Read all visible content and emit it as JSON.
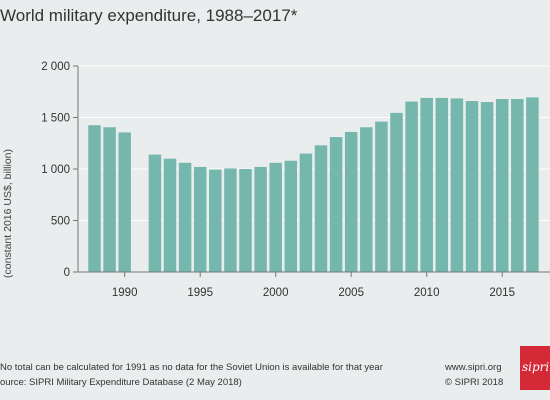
{
  "title": "World military expenditure, 1988–2017*",
  "footnote": "No total can be calculated for 1991 as no data for the Soviet Union is available for that year",
  "source": "ource: SIPRI Military Expenditure Database (2 May 2018)",
  "website": "www.sipri.org",
  "copyright": "© SIPRI 2018",
  "logo_text": "sipri",
  "colors": {
    "bar": "#76b7ad",
    "axis": "#777777",
    "background": "#e9eded"
  },
  "chart_data": {
    "type": "bar",
    "title": "World military expenditure, 1988–2017*",
    "ylabel": "(constant 2016 US$, billion)",
    "xlabel": "",
    "ylim": [
      0,
      2000
    ],
    "yticks": [
      0,
      500,
      1000,
      1500,
      2000
    ],
    "ytick_labels": [
      "0",
      "500",
      "1 000",
      "1 500",
      "2 000"
    ],
    "xticks": [
      1990,
      1995,
      2000,
      2005,
      2010,
      2015
    ],
    "categories": [
      1988,
      1989,
      1990,
      1991,
      1992,
      1993,
      1994,
      1995,
      1996,
      1997,
      1998,
      1999,
      2000,
      2001,
      2002,
      2003,
      2004,
      2005,
      2006,
      2007,
      2008,
      2009,
      2010,
      2011,
      2012,
      2013,
      2014,
      2015,
      2016,
      2017
    ],
    "values": [
      1425,
      1405,
      1355,
      null,
      1140,
      1100,
      1060,
      1020,
      995,
      1005,
      1000,
      1020,
      1060,
      1080,
      1150,
      1230,
      1310,
      1360,
      1405,
      1460,
      1545,
      1655,
      1690,
      1690,
      1685,
      1660,
      1650,
      1680,
      1680,
      1695
    ]
  }
}
